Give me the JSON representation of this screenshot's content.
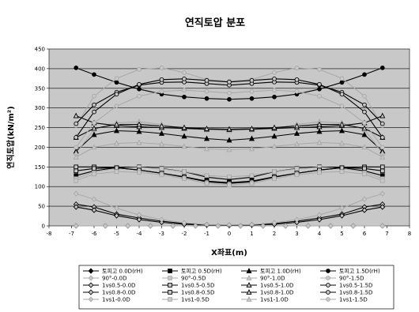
{
  "chart_data": {
    "type": "line",
    "title": "연직토압 분포",
    "xlabel": "X좌표(m)",
    "ylabel": "연직토압(kN/m²)",
    "xlim": [
      -8,
      8
    ],
    "ylim": [
      0,
      450
    ],
    "xticks": [
      -8,
      -7,
      -6,
      -5,
      -4,
      -3,
      -2,
      -1,
      0,
      1,
      2,
      3,
      4,
      5,
      6,
      7,
      8
    ],
    "yticks": [
      0,
      50,
      100,
      150,
      200,
      250,
      300,
      350,
      400,
      450
    ],
    "grid": "horizontal",
    "legend_position": "bottom",
    "colors": {
      "plot_bg": "#c8c8c8",
      "dark": "#000000",
      "light": "#a8a8a8",
      "grid": "#000000"
    },
    "series": [
      {
        "name": "토피고 0.0D(rH)",
        "style": "dark",
        "marker": "diamond",
        "x": [
          -6.8,
          -5.5,
          -4.5,
          -3.5,
          -2.5,
          -1.5,
          -0.5,
          0.5,
          1.5,
          2.5,
          3.5,
          4.5,
          5.5,
          6.8
        ],
        "y": [
          0,
          0,
          0,
          0,
          0,
          0,
          0,
          0,
          0,
          0,
          0,
          0,
          0,
          0
        ]
      },
      {
        "name": "토피고 0.5D(rH)",
        "style": "dark",
        "marker": "square",
        "x": [
          -6.8,
          -6.0,
          -5.0,
          -4.0,
          -3.0,
          -2.0,
          -1.0,
          0,
          1.0,
          2.0,
          3.0,
          4.0,
          5.0,
          6.0,
          6.8
        ],
        "y": [
          128,
          140,
          148,
          150,
          146,
          138,
          124,
          118,
          124,
          138,
          146,
          150,
          148,
          140,
          128
        ]
      },
      {
        "name": "토피고 1.0D(rH)",
        "style": "dark",
        "marker": "triangle",
        "x": [
          -6.8,
          -6.0,
          -5.0,
          -4.0,
          -3.0,
          -2.0,
          -1.0,
          0,
          1.0,
          2.0,
          3.0,
          4.0,
          5.0,
          6.0,
          6.8
        ],
        "y": [
          190,
          232,
          242,
          240,
          235,
          228,
          222,
          218,
          222,
          228,
          235,
          240,
          242,
          232,
          190
        ]
      },
      {
        "name": "토피고 1.5D(rH)",
        "style": "dark",
        "marker": "circle",
        "x": [
          -6.8,
          -6.0,
          -5.0,
          -4.0,
          -3.0,
          -2.0,
          -1.0,
          0,
          1.0,
          2.0,
          3.0,
          4.0,
          5.0,
          6.0,
          6.8
        ],
        "y": [
          402,
          385,
          365,
          348,
          335,
          328,
          324,
          322,
          324,
          328,
          335,
          348,
          365,
          385,
          402
        ]
      },
      {
        "name": "90°-0.0D",
        "style": "light",
        "marker": "diamond-open",
        "x": [
          -6.8,
          -5.5,
          -4.5,
          -3.5,
          -2.5,
          -1.5,
          -0.5,
          0.5,
          1.5,
          2.5,
          3.5,
          4.5,
          5.5,
          6.8
        ],
        "y": [
          0,
          0,
          0,
          0,
          0,
          0,
          0,
          0,
          0,
          0,
          0,
          0,
          0,
          0
        ]
      },
      {
        "name": "90°-0.5D",
        "style": "light",
        "marker": "square-open",
        "x": [
          -6.8,
          -6.0,
          -5.0,
          -4.0,
          -3.0,
          -2.0,
          -1.0,
          0,
          1.0,
          2.0,
          3.0,
          4.0,
          5.0,
          6.0,
          6.8
        ],
        "y": [
          120,
          138,
          146,
          149,
          145,
          138,
          128,
          125,
          128,
          138,
          145,
          149,
          146,
          138,
          120
        ]
      },
      {
        "name": "90°-1.0D",
        "style": "light",
        "marker": "triangle-open",
        "x": [
          -6.8,
          -6.0,
          -5.0,
          -4.0,
          -3.0,
          -2.0,
          -1.0,
          0,
          1.0,
          2.0,
          3.0,
          4.0,
          5.0,
          6.0,
          6.8
        ],
        "y": [
          185,
          245,
          262,
          265,
          258,
          248,
          244,
          242,
          244,
          248,
          258,
          265,
          262,
          245,
          185
        ]
      },
      {
        "name": "90°-1.5D",
        "style": "light",
        "marker": "circle-open",
        "x": [
          -6.8,
          -6.0,
          -5.0,
          -4.0,
          -3.0,
          -2.0,
          -1.0,
          0,
          1.0,
          2.0,
          3.0,
          4.0,
          5.0,
          6.0,
          6.8
        ],
        "y": [
          255,
          330,
          375,
          398,
          402,
          390,
          372,
          368,
          372,
          390,
          402,
          398,
          375,
          330,
          255
        ]
      },
      {
        "name": "1vs0.5-0.0D",
        "style": "dark",
        "marker": "diamond-open",
        "x": [
          -6.8,
          -6.0,
          -5.0,
          -4.0,
          -3.0,
          -2.0,
          -1.0,
          0,
          1.0,
          2.0,
          3.0,
          4.0,
          5.0,
          6.0,
          6.8
        ],
        "y": [
          55,
          48,
          30,
          20,
          12,
          6,
          3,
          2,
          3,
          6,
          12,
          20,
          30,
          48,
          55
        ]
      },
      {
        "name": "1vs0.5-0.5D",
        "style": "dark",
        "marker": "square-open",
        "x": [
          -6.8,
          -6.0,
          -5.0,
          -4.0,
          -3.0,
          -2.0,
          -1.0,
          0,
          1.0,
          2.0,
          3.0,
          4.0,
          5.0,
          6.0,
          6.8
        ],
        "y": [
          150,
          150,
          148,
          142,
          134,
          125,
          114,
          110,
          114,
          125,
          134,
          142,
          148,
          150,
          150
        ]
      },
      {
        "name": "1vs0.5-1.0D",
        "style": "dark",
        "marker": "triangle-open",
        "x": [
          -6.8,
          -6.0,
          -5.0,
          -4.0,
          -3.0,
          -2.0,
          -1.0,
          0,
          1.0,
          2.0,
          3.0,
          4.0,
          5.0,
          6.0,
          6.8
        ],
        "y": [
          280,
          262,
          255,
          252,
          250,
          248,
          246,
          245,
          246,
          248,
          250,
          252,
          255,
          262,
          280
        ]
      },
      {
        "name": "1vs0.5-1.5D",
        "style": "dark",
        "marker": "circle-open",
        "x": [
          -6.8,
          -6.0,
          -5.0,
          -4.0,
          -3.0,
          -2.0,
          -1.0,
          0,
          1.0,
          2.0,
          3.0,
          4.0,
          5.0,
          6.0,
          6.8
        ],
        "y": [
          260,
          308,
          340,
          358,
          365,
          366,
          362,
          358,
          362,
          366,
          365,
          358,
          340,
          308,
          260
        ]
      },
      {
        "name": "1vs0.8-0.0D",
        "style": "dark",
        "marker": "diamond-open",
        "x": [
          -6.8,
          -6.0,
          -5.0,
          -4.0,
          -3.0,
          -2.0,
          -1.0,
          0,
          1.0,
          2.0,
          3.0,
          4.0,
          5.0,
          6.0,
          6.8
        ],
        "y": [
          48,
          40,
          26,
          16,
          9,
          4,
          2,
          1,
          2,
          4,
          9,
          16,
          26,
          40,
          48
        ]
      },
      {
        "name": "1vs0.8-0.5D",
        "style": "dark",
        "marker": "square-open",
        "x": [
          -6.8,
          -6.0,
          -5.0,
          -4.0,
          -3.0,
          -2.0,
          -1.0,
          0,
          1.0,
          2.0,
          3.0,
          4.0,
          5.0,
          6.0,
          6.8
        ],
        "y": [
          140,
          146,
          148,
          142,
          134,
          124,
          112,
          108,
          112,
          124,
          134,
          142,
          148,
          146,
          140
        ]
      },
      {
        "name": "1vs0.8-1.0D",
        "style": "dark",
        "marker": "triangle-open",
        "x": [
          -6.8,
          -6.0,
          -5.0,
          -4.0,
          -3.0,
          -2.0,
          -1.0,
          0,
          1.0,
          2.0,
          3.0,
          4.0,
          5.0,
          6.0,
          6.8
        ],
        "y": [
          225,
          248,
          258,
          258,
          254,
          250,
          247,
          246,
          247,
          250,
          254,
          258,
          258,
          248,
          225
        ]
      },
      {
        "name": "1vs0.8-1.5D",
        "style": "dark",
        "marker": "circle-open",
        "x": [
          -6.8,
          -6.0,
          -5.0,
          -4.0,
          -3.0,
          -2.0,
          -1.0,
          0,
          1.0,
          2.0,
          3.0,
          4.0,
          5.0,
          6.0,
          6.8
        ],
        "y": [
          225,
          290,
          335,
          360,
          372,
          374,
          370,
          366,
          370,
          374,
          372,
          360,
          335,
          290,
          225
        ]
      },
      {
        "name": "1vs1-0.0D",
        "style": "light",
        "marker": "diamond-open",
        "x": [
          -6.8,
          -6.0,
          -5.0,
          -4.0,
          -3.0,
          -2.0,
          -1.0,
          0,
          1.0,
          2.0,
          3.0,
          4.0,
          5.0,
          6.0,
          6.8
        ],
        "y": [
          82,
          68,
          45,
          28,
          16,
          8,
          3,
          2,
          3,
          8,
          16,
          28,
          45,
          68,
          82
        ]
      },
      {
        "name": "1vs1-0.5D",
        "style": "light",
        "marker": "square-open",
        "x": [
          -6.8,
          -6.0,
          -5.0,
          -4.0,
          -3.0,
          -2.0,
          -1.0,
          0,
          1.0,
          2.0,
          3.0,
          4.0,
          5.0,
          6.0,
          6.8
        ],
        "y": [
          115,
          132,
          138,
          136,
          130,
          120,
          108,
          104,
          108,
          120,
          130,
          136,
          138,
          132,
          115
        ]
      },
      {
        "name": "1vs1-1.0D",
        "style": "light",
        "marker": "triangle-open",
        "x": [
          -6.8,
          -6.0,
          -5.0,
          -4.0,
          -3.0,
          -2.0,
          -1.0,
          0,
          1.0,
          2.0,
          3.0,
          4.0,
          5.0,
          6.0,
          6.8
        ],
        "y": [
          175,
          200,
          210,
          212,
          208,
          202,
          196,
          194,
          196,
          202,
          208,
          212,
          210,
          200,
          175
        ]
      },
      {
        "name": "1vs1-1.5D",
        "style": "light",
        "marker": "circle-open",
        "x": [
          -6.8,
          -6.0,
          -5.0,
          -4.0,
          -3.0,
          -2.0,
          -1.0,
          0,
          1.0,
          2.0,
          3.0,
          4.0,
          5.0,
          6.0,
          6.8
        ],
        "y": [
          200,
          262,
          305,
          330,
          342,
          345,
          342,
          338,
          342,
          345,
          342,
          330,
          305,
          262,
          200
        ]
      }
    ]
  }
}
